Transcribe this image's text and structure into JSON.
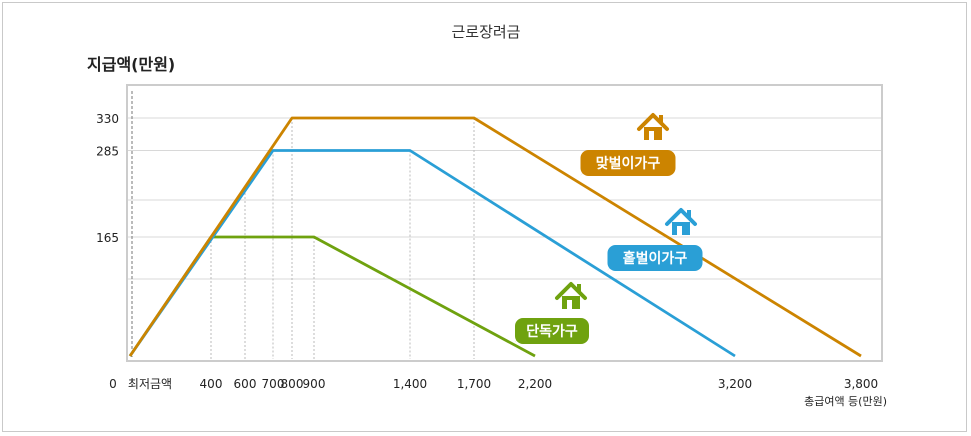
{
  "chart_data": {
    "type": "line",
    "title": "근로장려금",
    "ylabel": "지급액(만원)",
    "xlabel": "총급여액 등(만원)",
    "x_tick_labels": [
      "0",
      "최저금액",
      "400",
      "600",
      "700",
      "800",
      "900",
      "1,400",
      "1,700",
      "2,200",
      "3,200",
      "3,800"
    ],
    "y_tick_labels": [
      "330",
      "285",
      "165"
    ],
    "grid": true,
    "series": [
      {
        "name": "맞벌이가구",
        "color": "#cc8400",
        "icon": "house-icon",
        "points": [
          [
            0,
            0
          ],
          [
            800,
            330
          ],
          [
            1700,
            330
          ],
          [
            3800,
            0
          ]
        ]
      },
      {
        "name": "홑벌이가구",
        "color": "#2a9fd6",
        "icon": "house-icon",
        "points": [
          [
            0,
            0
          ],
          [
            700,
            285
          ],
          [
            1400,
            285
          ],
          [
            3200,
            0
          ]
        ]
      },
      {
        "name": "단독가구",
        "color": "#6fa20f",
        "icon": "house-icon",
        "points": [
          [
            0,
            0
          ],
          [
            400,
            165
          ],
          [
            900,
            165
          ],
          [
            2200,
            0
          ]
        ]
      }
    ]
  }
}
